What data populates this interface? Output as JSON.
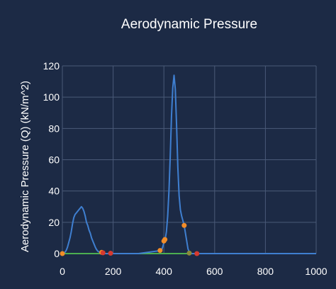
{
  "chart_data": {
    "type": "line",
    "title": "Aerodynamic Pressure",
    "xlabel": "",
    "ylabel": "Aerodynamic Pressure (Q) (kN/m^2)",
    "xlim": [
      0,
      1000
    ],
    "ylim": [
      0,
      120
    ],
    "xticks": [
      0,
      200,
      400,
      600,
      800,
      1000
    ],
    "yticks": [
      0,
      20,
      40,
      60,
      80,
      100,
      120
    ],
    "grid": true,
    "colors": {
      "background": "#1c2a45",
      "grid": "#4a5a78",
      "text": "#ffffff",
      "line": "#3f7fd0",
      "baseline": "#4caf50",
      "marker_orange": "#f28c28",
      "marker_red": "#d63a2f",
      "marker_olive": "#8b8a3a"
    },
    "series": [
      {
        "x": [
          0,
          5,
          10,
          15,
          20,
          25,
          30,
          35,
          40,
          45,
          50,
          55,
          60,
          65,
          70,
          75,
          80,
          85,
          90,
          95,
          100,
          105,
          110,
          115,
          120,
          125,
          130,
          135,
          140,
          145,
          150,
          155,
          160,
          200,
          300,
          390,
          395,
          400,
          405,
          410,
          415,
          420,
          425,
          430,
          435,
          440,
          445,
          450,
          455,
          460,
          465,
          470,
          475,
          480,
          485,
          490,
          495,
          500,
          505,
          510,
          520,
          600,
          800,
          1000
        ],
        "y": [
          0,
          0.3,
          0.8,
          2,
          4,
          7,
          10,
          14,
          19,
          23,
          25,
          26,
          27,
          28,
          29,
          30,
          29,
          27,
          24,
          20,
          18,
          15,
          13,
          10,
          8,
          6,
          4,
          2.5,
          1.5,
          1,
          0.5,
          0.2,
          0,
          0,
          0,
          2,
          4,
          7,
          9,
          14,
          24,
          40,
          62,
          88,
          106,
          114,
          105,
          82,
          55,
          37,
          28,
          24,
          21,
          18,
          13,
          8,
          3,
          1,
          0.3,
          0,
          0,
          0,
          0,
          0
        ]
      },
      {
        "x": [
          0,
          1000
        ],
        "y": [
          0,
          0
        ]
      }
    ],
    "markers": [
      {
        "x": 0,
        "y": 0,
        "color": "orange"
      },
      {
        "x": 155,
        "y": 0.8,
        "color": "orange"
      },
      {
        "x": 160,
        "y": 0.5,
        "color": "red"
      },
      {
        "x": 190,
        "y": 0.2,
        "color": "red"
      },
      {
        "x": 385,
        "y": 2,
        "color": "orange"
      },
      {
        "x": 400,
        "y": 8,
        "color": "orange"
      },
      {
        "x": 404,
        "y": 9,
        "color": "orange"
      },
      {
        "x": 480,
        "y": 18,
        "color": "orange"
      },
      {
        "x": 500,
        "y": 0.3,
        "color": "olive"
      },
      {
        "x": 530,
        "y": 0,
        "color": "red"
      }
    ]
  }
}
